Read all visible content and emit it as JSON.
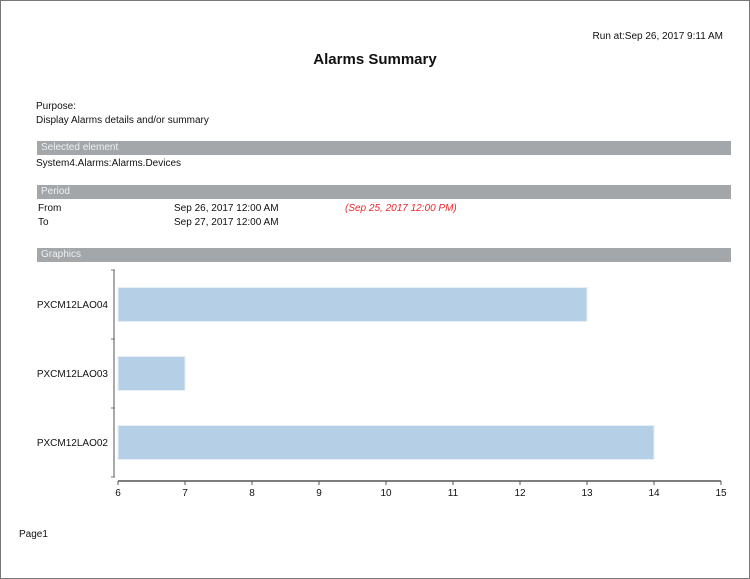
{
  "header": {
    "run_at": "Run at:Sep 26, 2017 9:11 AM",
    "title": "Alarms Summary"
  },
  "purpose": {
    "label": "Purpose:",
    "text": "Display Alarms details and/or summary"
  },
  "selected_element": {
    "heading": "Selected element",
    "value": "System4.Alarms:Alarms.Devices"
  },
  "period": {
    "heading": "Period",
    "from_label": "From",
    "from_value": "Sep 26, 2017 12:00 AM",
    "from_alt": "(Sep 25, 2017 12:00 PM)",
    "to_label": "To",
    "to_value": "Sep 27, 2017 12:00 AM",
    "alt_color": "#e8272b"
  },
  "graphics": {
    "heading": "Graphics"
  },
  "chart_data": {
    "type": "bar",
    "orientation": "horizontal",
    "categories": [
      "PXCM12LAO04",
      "PXCM12LAO03",
      "PXCM12LAO02"
    ],
    "values": [
      13,
      7,
      14
    ],
    "xlim": [
      6,
      15
    ],
    "xticks": [
      "6",
      "7",
      "8",
      "9",
      "10",
      "11",
      "12",
      "13",
      "14",
      "15"
    ],
    "bar_color": "#b5d0e6",
    "grid": false
  },
  "footer": {
    "page": "Page1"
  }
}
